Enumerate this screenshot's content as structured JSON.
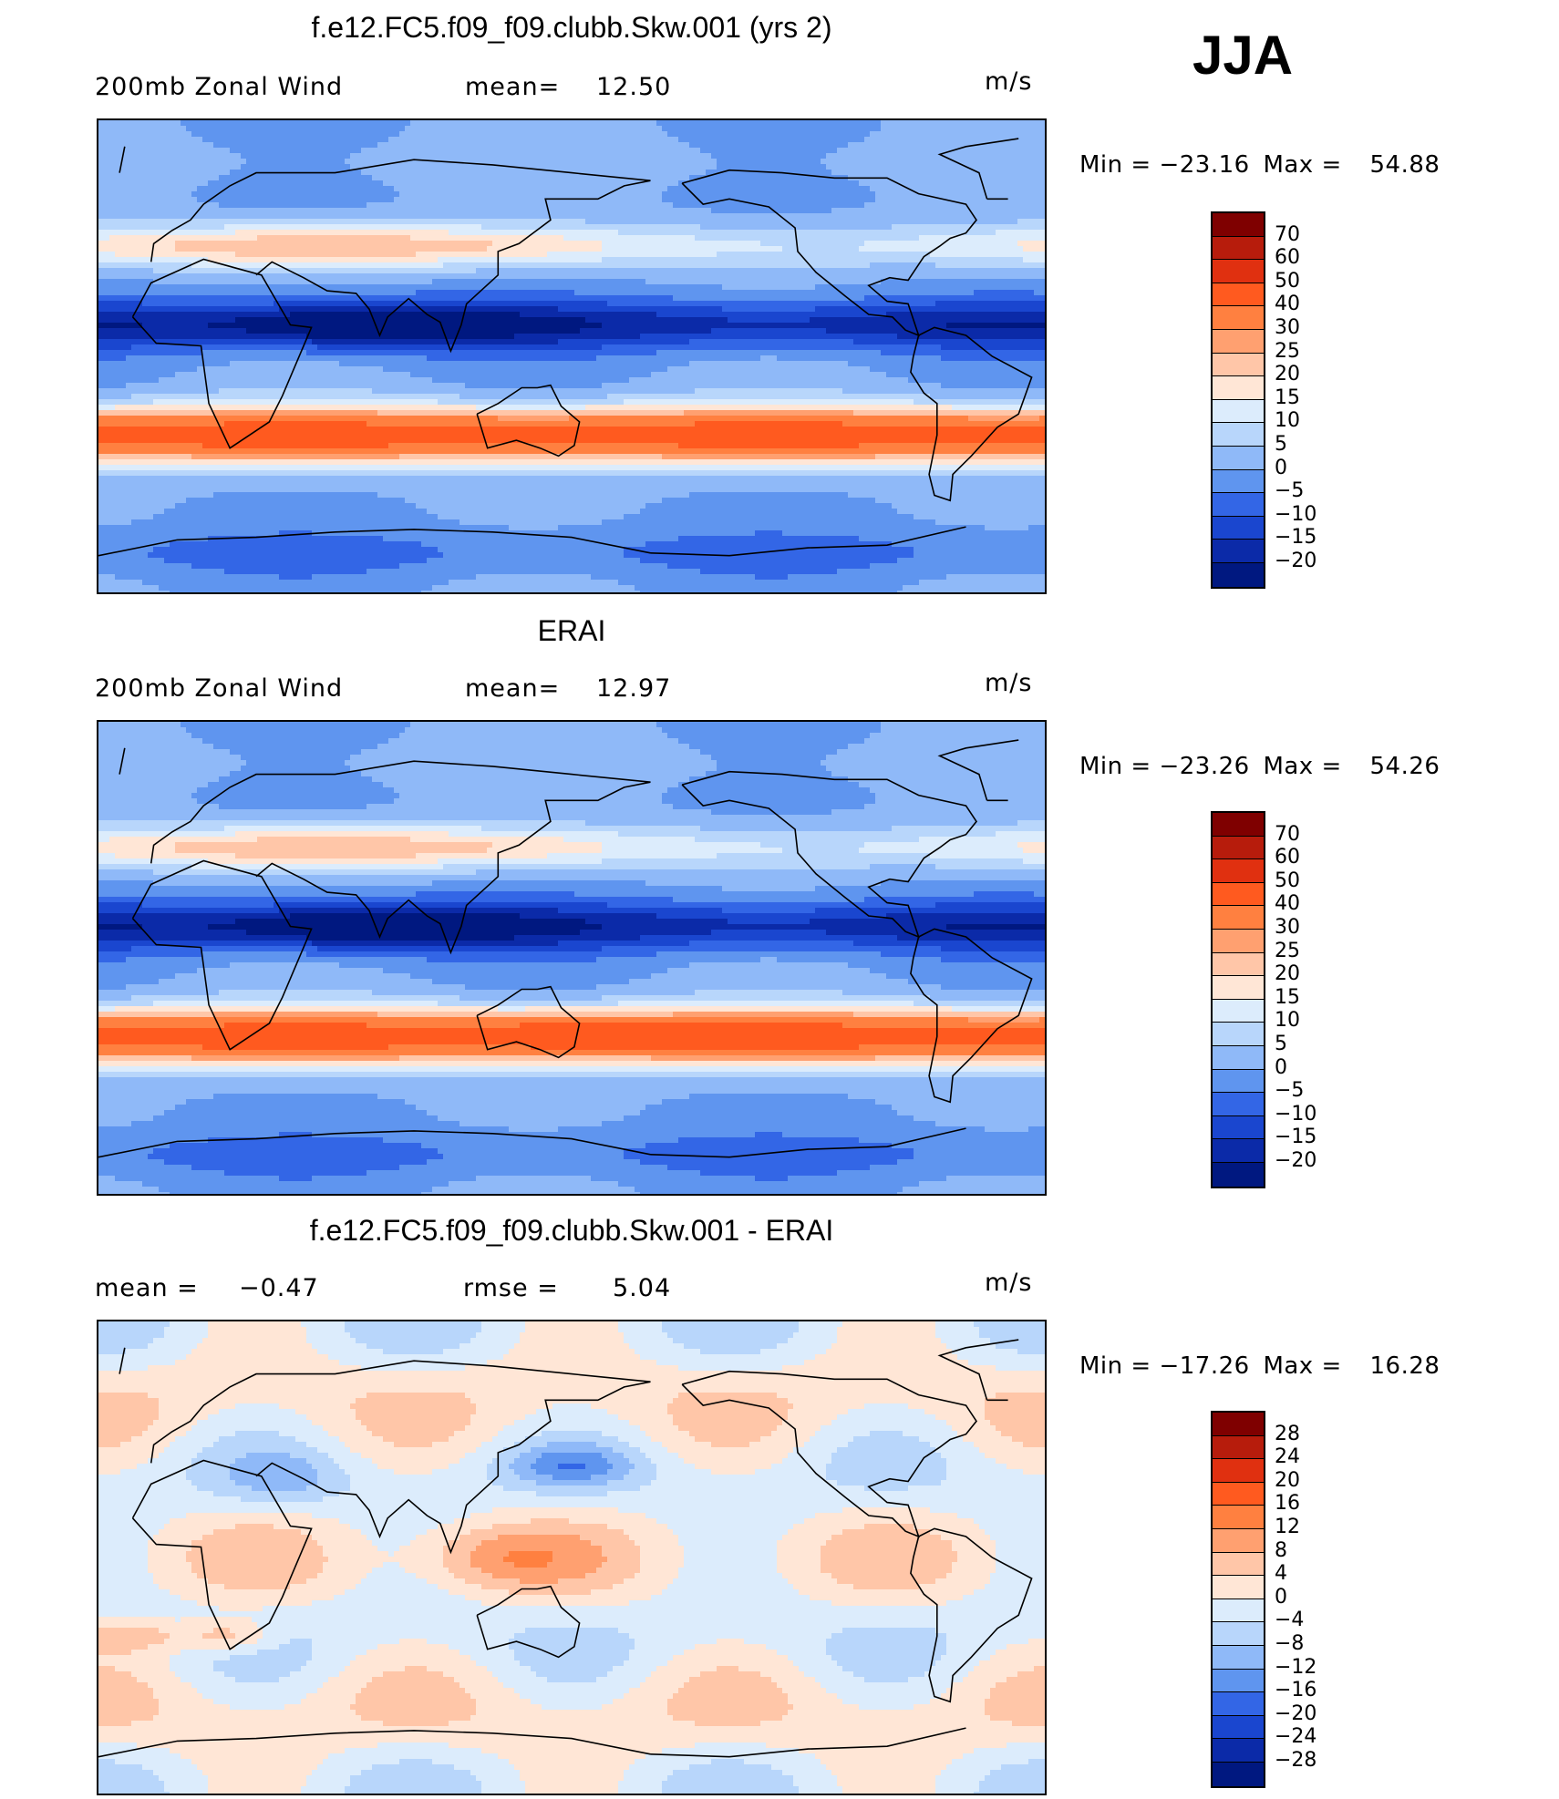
{
  "season": "JJA",
  "panels": [
    {
      "title": "f.e12.FC5.f09_f09.clubb.Skw.001 (yrs 2)",
      "left_label": "200mb Zonal Wind",
      "stat1_label": "mean=",
      "stat1_value": "12.50",
      "stat2_label": "",
      "stat2_value": "",
      "units": "m/s",
      "min_label": "Min =",
      "min_value": "−23.16",
      "max_label": "Max =",
      "max_value": "54.88",
      "field": "model",
      "colorbar": {
        "labels": [
          "70",
          "60",
          "50",
          "40",
          "30",
          "25",
          "20",
          "15",
          "10",
          "5",
          "0",
          "−5",
          "−10",
          "−15",
          "−20"
        ],
        "colors": [
          "#7f0000",
          "#b71c0c",
          "#e03010",
          "#ff5a1f",
          "#ff8040",
          "#ffa070",
          "#ffc6a8",
          "#ffe6d6",
          "#dcecfc",
          "#b8d6fb",
          "#8fb9f8",
          "#5f95ef",
          "#3366e6",
          "#1a46cf",
          "#0b2aa8",
          "#001880"
        ]
      }
    },
    {
      "title": "ERAI",
      "left_label": "200mb Zonal Wind",
      "stat1_label": "mean=",
      "stat1_value": "12.97",
      "stat2_label": "",
      "stat2_value": "",
      "units": "m/s",
      "min_label": "Min =",
      "min_value": "−23.26",
      "max_label": "Max =",
      "max_value": "54.26",
      "field": "obs",
      "colorbar": {
        "labels": [
          "70",
          "60",
          "50",
          "40",
          "30",
          "25",
          "20",
          "15",
          "10",
          "5",
          "0",
          "−5",
          "−10",
          "−15",
          "−20"
        ],
        "colors": [
          "#7f0000",
          "#b71c0c",
          "#e03010",
          "#ff5a1f",
          "#ff8040",
          "#ffa070",
          "#ffc6a8",
          "#ffe6d6",
          "#dcecfc",
          "#b8d6fb",
          "#8fb9f8",
          "#5f95ef",
          "#3366e6",
          "#1a46cf",
          "#0b2aa8",
          "#001880"
        ]
      }
    },
    {
      "title": "f.e12.FC5.f09_f09.clubb.Skw.001 - ERAI",
      "left_label": "",
      "stat1_label": "mean =",
      "stat1_value": "−0.47",
      "stat2_label": "rmse =",
      "stat2_value": "5.04",
      "units": "m/s",
      "min_label": "Min =",
      "min_value": "−17.26",
      "max_label": "Max =",
      "max_value": "16.28",
      "field": "diff",
      "colorbar": {
        "labels": [
          "28",
          "24",
          "20",
          "16",
          "12",
          "8",
          "4",
          "0",
          "−4",
          "−8",
          "−12",
          "−16",
          "−20",
          "−24",
          "−28"
        ],
        "colors": [
          "#7f0000",
          "#b71c0c",
          "#e03010",
          "#ff5a1f",
          "#ff8040",
          "#ffa070",
          "#ffc6a8",
          "#ffe6d6",
          "#dcecfc",
          "#b8d6fb",
          "#8fb9f8",
          "#5f95ef",
          "#3366e6",
          "#1a46cf",
          "#0b2aa8",
          "#001880"
        ]
      }
    }
  ]
}
